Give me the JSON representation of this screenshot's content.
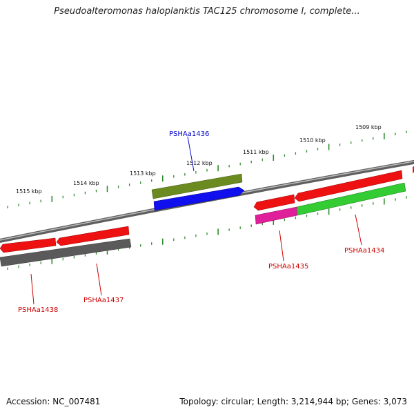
{
  "title": "Pseudoalteromonas haloplanktis TAC125 chromosome I, complete...",
  "footer": {
    "accession": "Accession: NC_007481",
    "summary": "Topology: circular; Length: 3,214,944 bp; Genes: 3,073"
  },
  "ruler_labels": [
    "1515 kbp",
    "1514 kbp",
    "1513 kbp",
    "1512 kbp",
    "1511 kbp",
    "1510 kbp",
    "1509 kbp"
  ],
  "genes": [
    {
      "label": "PSHAa1438",
      "color": "#cc0000"
    },
    {
      "label": "PSHAa1437",
      "color": "#cc0000"
    },
    {
      "label": "PSHAa1436",
      "color": "#0000cc"
    },
    {
      "label": "PSHAa1435",
      "color": "#cc0000"
    },
    {
      "label": "PSHAa1434",
      "color": "#cc0000"
    }
  ],
  "colors": {
    "backbone": "#7a7a7a",
    "ticks": "#2e8b2e",
    "cds": "#ee1111",
    "gray_feature": "#5a5a5a",
    "olive_feature": "#6b8a1f",
    "blue_feature": "#1010ee",
    "magenta_feature": "#e0209a",
    "green_feature": "#33cc33"
  }
}
